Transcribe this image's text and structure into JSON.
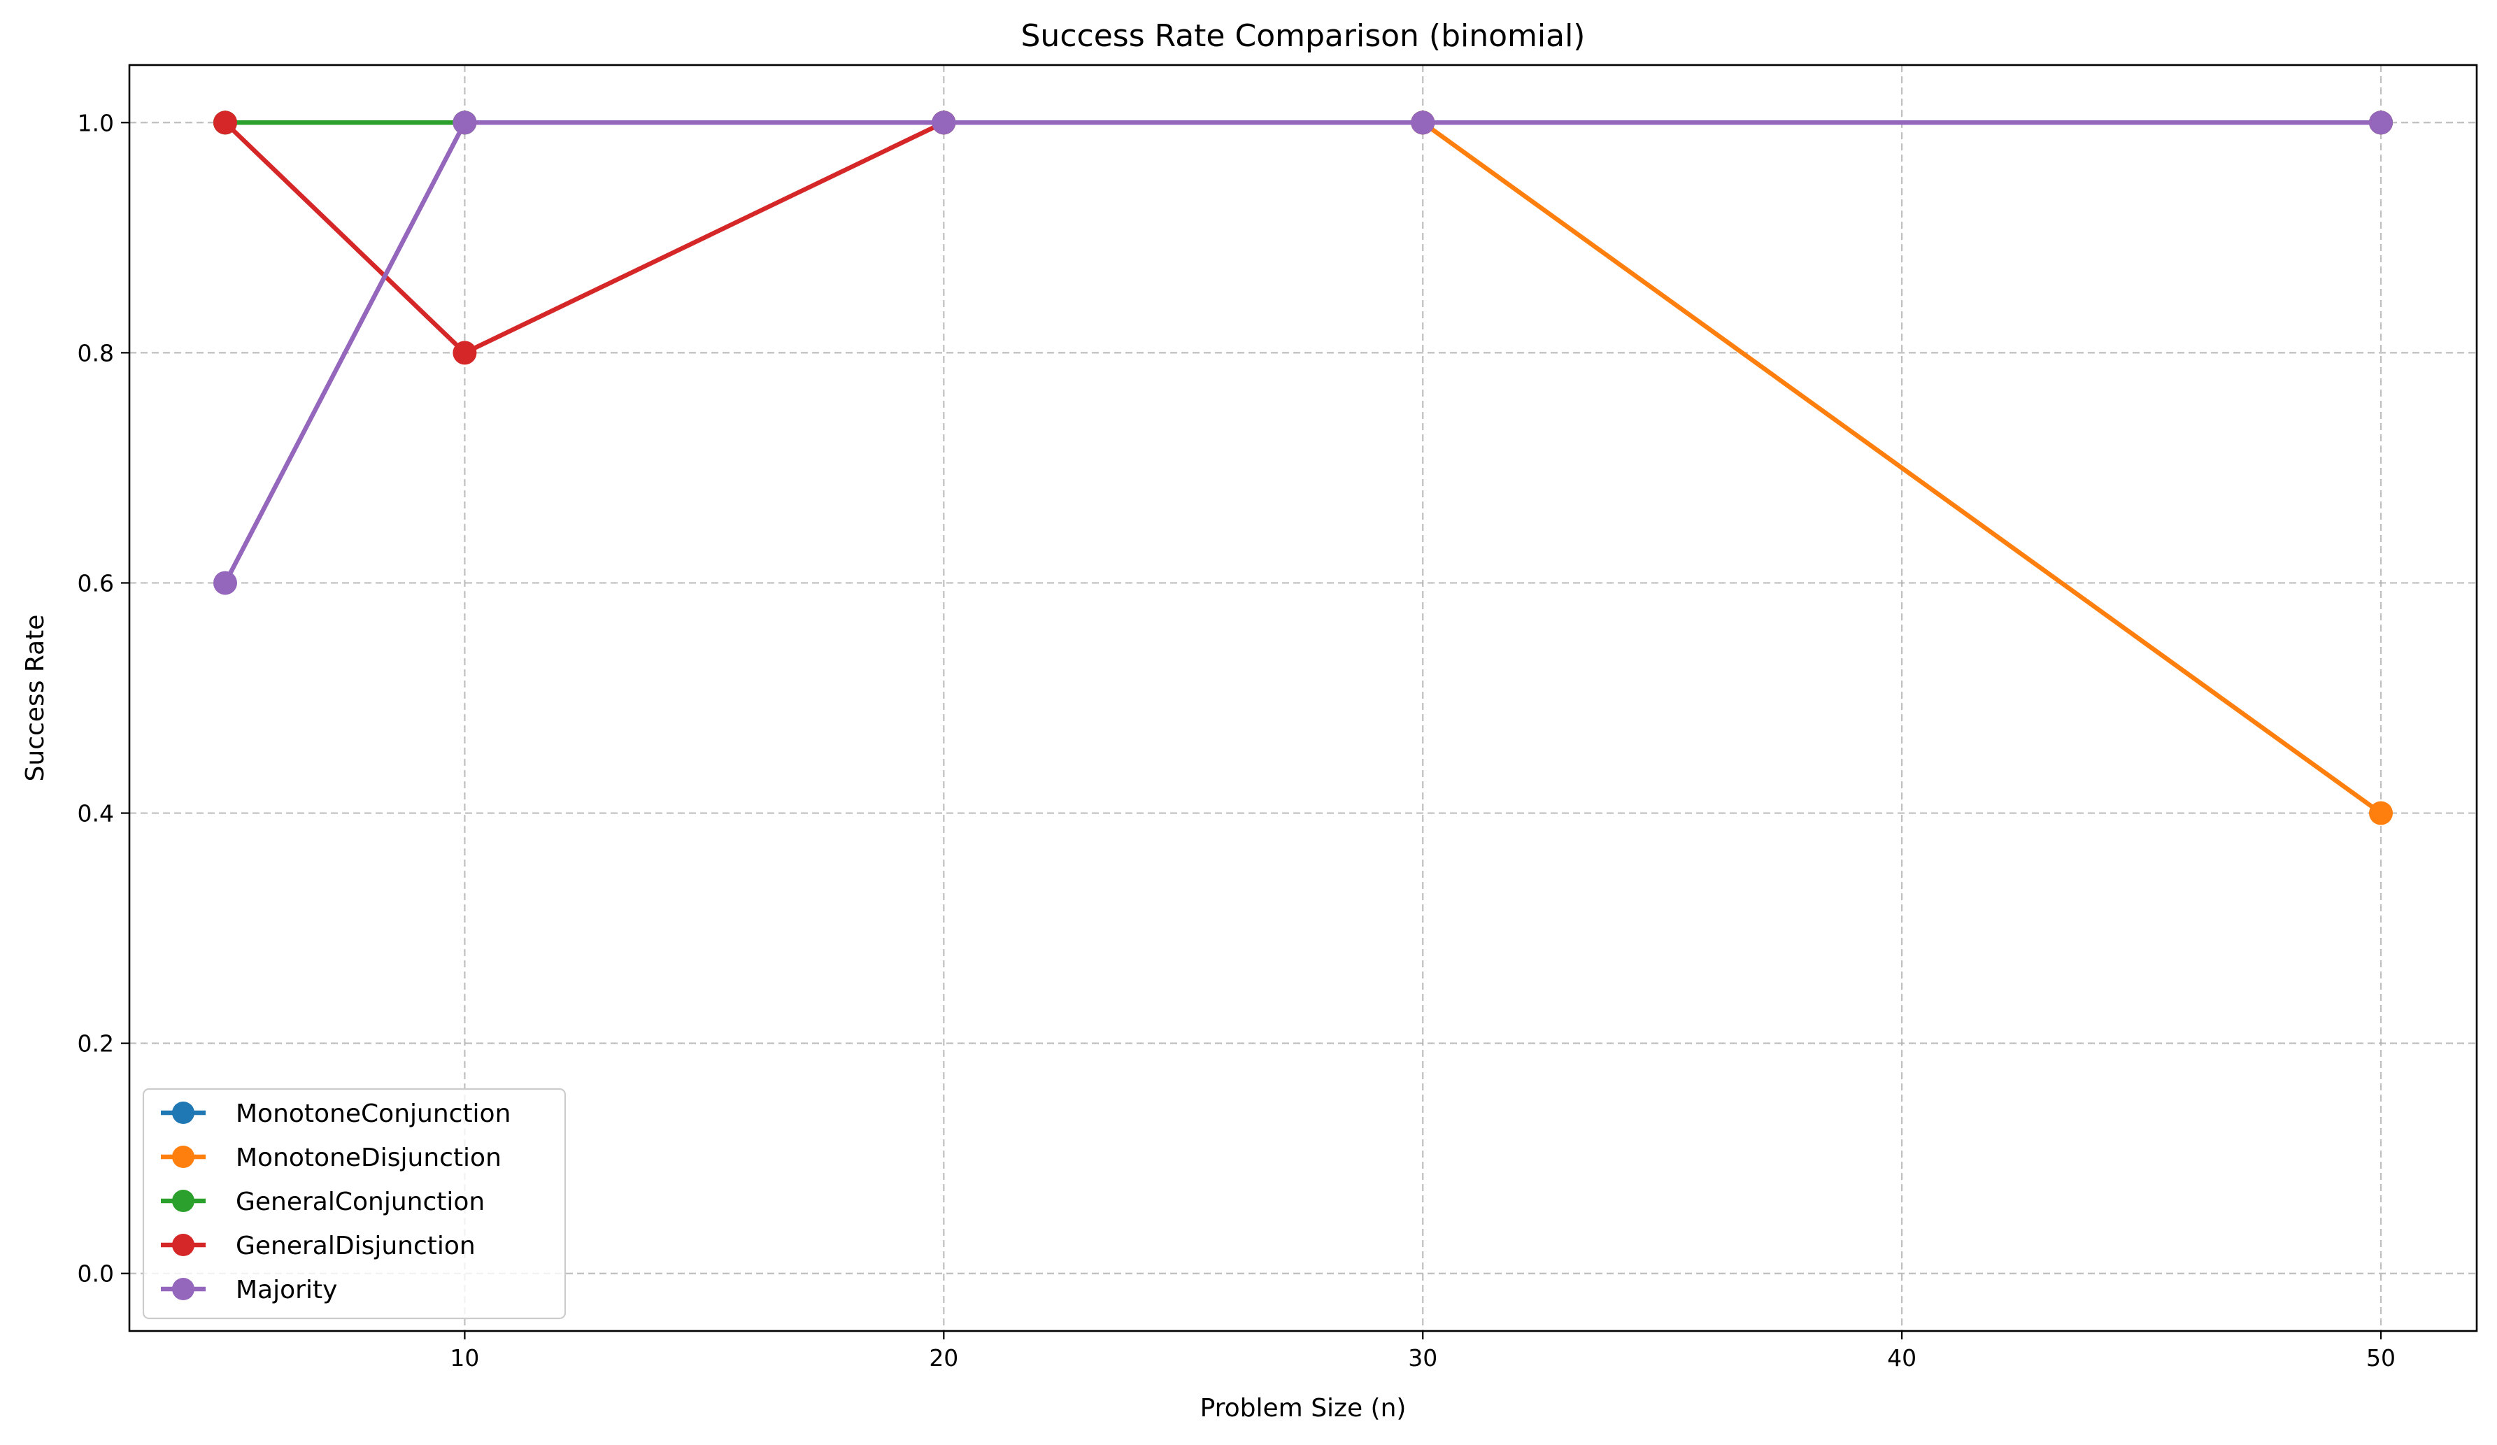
{
  "chart_data": {
    "type": "line",
    "title": "Success Rate Comparison (binomial)",
    "xlabel": "Problem Size (n)",
    "ylabel": "Success Rate",
    "x": [
      5,
      10,
      20,
      30,
      50
    ],
    "xlim": [
      3,
      52
    ],
    "ylim": [
      -0.05,
      1.05
    ],
    "xticks": [
      10,
      20,
      30,
      40,
      50
    ],
    "xtick_labels": [
      "10",
      "20",
      "30",
      "40",
      "50"
    ],
    "yticks": [
      0.0,
      0.2,
      0.4,
      0.6,
      0.8,
      1.0
    ],
    "ytick_labels": [
      "0.0",
      "0.2",
      "0.4",
      "0.6",
      "0.8",
      "1.0"
    ],
    "grid": true,
    "legend_position": "lower-left",
    "series": [
      {
        "name": "MonotoneConjunction",
        "color": "#1f77b4",
        "values": [
          1.0,
          1.0,
          1.0,
          1.0,
          1.0
        ]
      },
      {
        "name": "MonotoneDisjunction",
        "color": "#ff7f0e",
        "values": [
          1.0,
          1.0,
          1.0,
          1.0,
          0.4
        ]
      },
      {
        "name": "GeneralConjunction",
        "color": "#2ca02c",
        "values": [
          1.0,
          1.0,
          1.0,
          1.0,
          1.0
        ]
      },
      {
        "name": "GeneralDisjunction",
        "color": "#d62728",
        "values": [
          1.0,
          0.8,
          1.0,
          1.0,
          1.0
        ]
      },
      {
        "name": "Majority",
        "color": "#9467bd",
        "values": [
          0.6,
          1.0,
          1.0,
          1.0,
          1.0
        ]
      }
    ]
  }
}
